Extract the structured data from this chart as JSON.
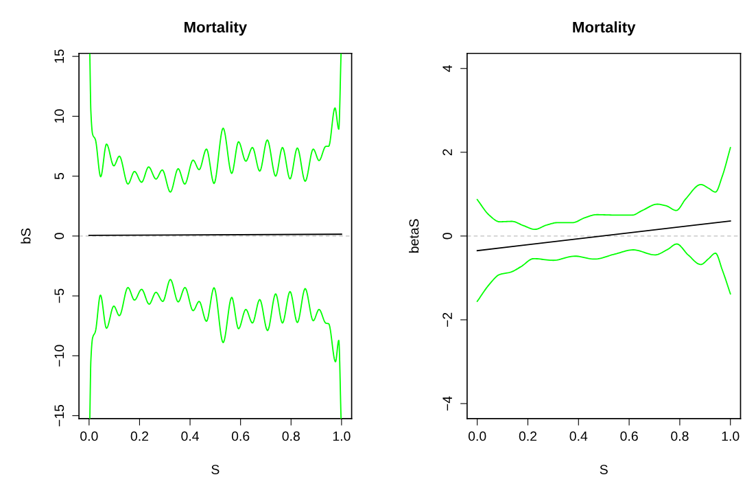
{
  "chart_data": [
    {
      "type": "line",
      "title": "Mortality",
      "xlabel": "S",
      "ylabel": "bS",
      "xlim": [
        -0.04,
        1.04
      ],
      "ylim": [
        -15.25,
        15.25
      ],
      "xticks": [
        {
          "value": 0,
          "label": "0.0"
        },
        {
          "value": 0.2,
          "label": "0.2"
        },
        {
          "value": 0.4,
          "label": "0.4"
        },
        {
          "value": 0.6,
          "label": "0.6"
        },
        {
          "value": 0.8,
          "label": "0.8"
        },
        {
          "value": 1,
          "label": "1.0"
        }
      ],
      "yticks": [
        {
          "value": -15,
          "label": "−15"
        },
        {
          "value": -10,
          "label": "−10"
        },
        {
          "value": -5,
          "label": "−5"
        },
        0,
        5,
        10,
        15
      ],
      "grid": false,
      "ref_lines": [
        {
          "axis": "y",
          "value": 0,
          "color": "#bebebe",
          "line_style": "dashed"
        }
      ],
      "series": [
        {
          "color": "#00ff00",
          "x": [
            0.003,
            0.007,
            0.014,
            0.025,
            0.046,
            0.069,
            0.098,
            0.12,
            0.154,
            0.18,
            0.208,
            0.236,
            0.265,
            0.29,
            0.322,
            0.353,
            0.379,
            0.412,
            0.436,
            0.465,
            0.495,
            0.531,
            0.565,
            0.592,
            0.621,
            0.647,
            0.676,
            0.706,
            0.739,
            0.766,
            0.796,
            0.825,
            0.856,
            0.888,
            0.911,
            0.938,
            0.949,
            0.974,
            0.989,
            0.998
          ],
          "values": [
            15.2,
            10.5,
            8.5,
            8.06,
            4.95,
            7.68,
            5.86,
            6.67,
            4.34,
            5.39,
            4.49,
            5.77,
            4.76,
            5.52,
            3.67,
            5.62,
            4.34,
            6.34,
            5.54,
            7.26,
            4.39,
            9.01,
            5.23,
            7.87,
            6.25,
            7.39,
            5.42,
            8.02,
            5.0,
            7.39,
            4.77,
            7.35,
            4.57,
            7.26,
            6.3,
            7.49,
            7.49,
            10.7,
            8.92,
            15.2
          ]
        },
        {
          "color": "#00ff00",
          "x": [
            0.003,
            0.007,
            0.014,
            0.025,
            0.045,
            0.069,
            0.098,
            0.12,
            0.154,
            0.18,
            0.208,
            0.238,
            0.265,
            0.292,
            0.322,
            0.353,
            0.38,
            0.412,
            0.436,
            0.465,
            0.495,
            0.531,
            0.565,
            0.592,
            0.621,
            0.647,
            0.676,
            0.707,
            0.739,
            0.766,
            0.796,
            0.825,
            0.856,
            0.888,
            0.911,
            0.938,
            0.949,
            0.976,
            0.989,
            0.998
          ],
          "values": [
            -15.2,
            -10.47,
            -8.5,
            -7.98,
            -4.93,
            -7.7,
            -5.85,
            -6.65,
            -4.3,
            -5.35,
            -4.45,
            -5.69,
            -4.7,
            -5.46,
            -3.63,
            -5.5,
            -4.3,
            -6.23,
            -5.46,
            -7.12,
            -4.32,
            -8.9,
            -5.12,
            -7.74,
            -6.13,
            -7.26,
            -5.31,
            -7.89,
            -4.83,
            -7.26,
            -4.64,
            -7.22,
            -4.39,
            -7.07,
            -6.13,
            -7.28,
            -7.32,
            -10.5,
            -8.71,
            -15.2
          ]
        },
        {
          "color": "#000000",
          "x": [
            0,
            1
          ],
          "values": [
            0.06,
            0.15
          ]
        }
      ]
    },
    {
      "type": "line",
      "title": "Mortality",
      "xlabel": "S",
      "ylabel": "betaS",
      "xlim": [
        -0.04,
        1.04
      ],
      "ylim": [
        -4.36,
        4.36
      ],
      "xticks": [
        {
          "value": 0,
          "label": "0.0"
        },
        {
          "value": 0.2,
          "label": "0.2"
        },
        {
          "value": 0.4,
          "label": "0.4"
        },
        {
          "value": 0.6,
          "label": "0.6"
        },
        {
          "value": 0.8,
          "label": "0.8"
        },
        {
          "value": 1,
          "label": "1.0"
        }
      ],
      "yticks": [
        {
          "value": -4,
          "label": "−4"
        },
        {
          "value": -2,
          "label": "−2"
        },
        0,
        2,
        4
      ],
      "grid": false,
      "ref_lines": [
        {
          "axis": "y",
          "value": 0,
          "color": "#bebebe",
          "line_style": "dashed"
        }
      ],
      "series": [
        {
          "color": "#00ff00",
          "x": [
            0,
            0.047,
            0.088,
            0.137,
            0.182,
            0.228,
            0.273,
            0.318,
            0.377,
            0.426,
            0.472,
            0.544,
            0.612,
            0.652,
            0.711,
            0.747,
            0.786,
            0.824,
            0.883,
            0.914,
            0.941,
            0.968,
            1.0
          ],
          "values": [
            0.87,
            0.5,
            0.34,
            0.35,
            0.25,
            0.16,
            0.26,
            0.32,
            0.32,
            0.44,
            0.51,
            0.5,
            0.5,
            0.61,
            0.76,
            0.72,
            0.61,
            0.89,
            1.23,
            1.14,
            1.05,
            1.43,
            2.11
          ]
        },
        {
          "color": "#00ff00",
          "x": [
            0,
            0.047,
            0.088,
            0.133,
            0.173,
            0.223,
            0.3,
            0.386,
            0.463,
            0.544,
            0.616,
            0.702,
            0.752,
            0.788,
            0.833,
            0.883,
            0.914,
            0.941,
            0.968,
            1.0
          ],
          "values": [
            -1.56,
            -1.16,
            -0.92,
            -0.86,
            -0.73,
            -0.54,
            -0.58,
            -0.48,
            -0.55,
            -0.43,
            -0.33,
            -0.45,
            -0.32,
            -0.19,
            -0.45,
            -0.68,
            -0.54,
            -0.41,
            -0.81,
            -1.38
          ]
        },
        {
          "color": "#000000",
          "x": [
            0,
            1
          ],
          "values": [
            -0.35,
            0.36
          ]
        }
      ]
    }
  ]
}
